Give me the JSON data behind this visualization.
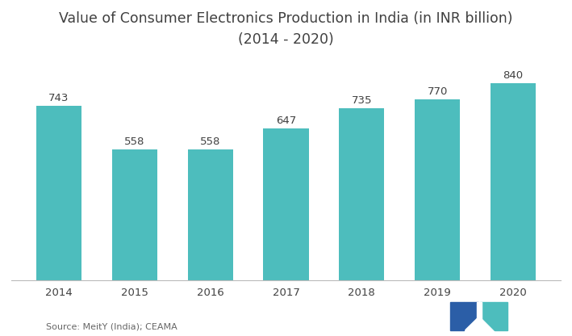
{
  "title_line1": "Value of Consumer Electronics Production in India (in INR billion)",
  "title_line2": "(2014 - 2020)",
  "categories": [
    "2014",
    "2015",
    "2016",
    "2017",
    "2018",
    "2019",
    "2020"
  ],
  "values": [
    743,
    558,
    558,
    647,
    735,
    770,
    840
  ],
  "bar_color": "#4DBDBD",
  "background_color": "#ffffff",
  "label_color": "#404040",
  "source_text": "Source: MeitY (India); CEAMA",
  "ylim": [
    0,
    950
  ],
  "bar_width": 0.6,
  "title_fontsize": 12.5,
  "label_fontsize": 9.5,
  "tick_fontsize": 9.5,
  "source_fontsize": 8.0,
  "logo_dark": "#2B5EA7",
  "logo_teal": "#4DBDBD"
}
